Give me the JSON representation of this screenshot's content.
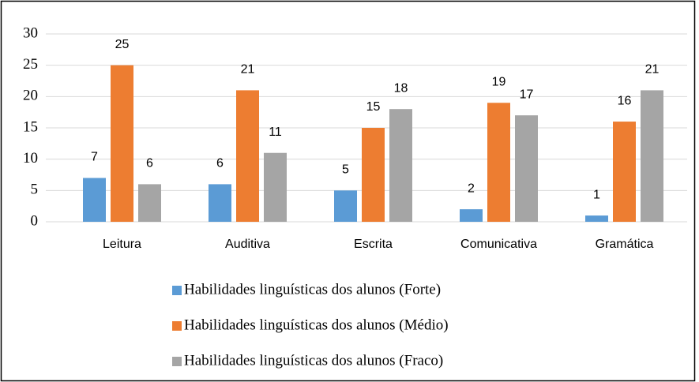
{
  "chart_data": {
    "type": "bar",
    "categories": [
      "Leitura",
      "Auditiva",
      "Escrita",
      "Comunicativa",
      "Gramática"
    ],
    "series": [
      {
        "name": "Habilidades linguísticas dos alunos (Forte)",
        "color": "#5b9bd5",
        "values": [
          7,
          6,
          5,
          2,
          1
        ]
      },
      {
        "name": "Habilidades linguísticas dos alunos (Médio)",
        "color": "#ed7d31",
        "values": [
          25,
          21,
          15,
          19,
          16
        ]
      },
      {
        "name": "Habilidades linguísticas dos alunos (Fraco)",
        "color": "#a5a5a5",
        "values": [
          6,
          11,
          18,
          17,
          21
        ]
      }
    ],
    "ylim": [
      0,
      30
    ],
    "yticks": [
      0,
      5,
      10,
      15,
      20,
      25,
      30
    ],
    "grid": true,
    "legend": "bottom",
    "data_labels": true
  }
}
